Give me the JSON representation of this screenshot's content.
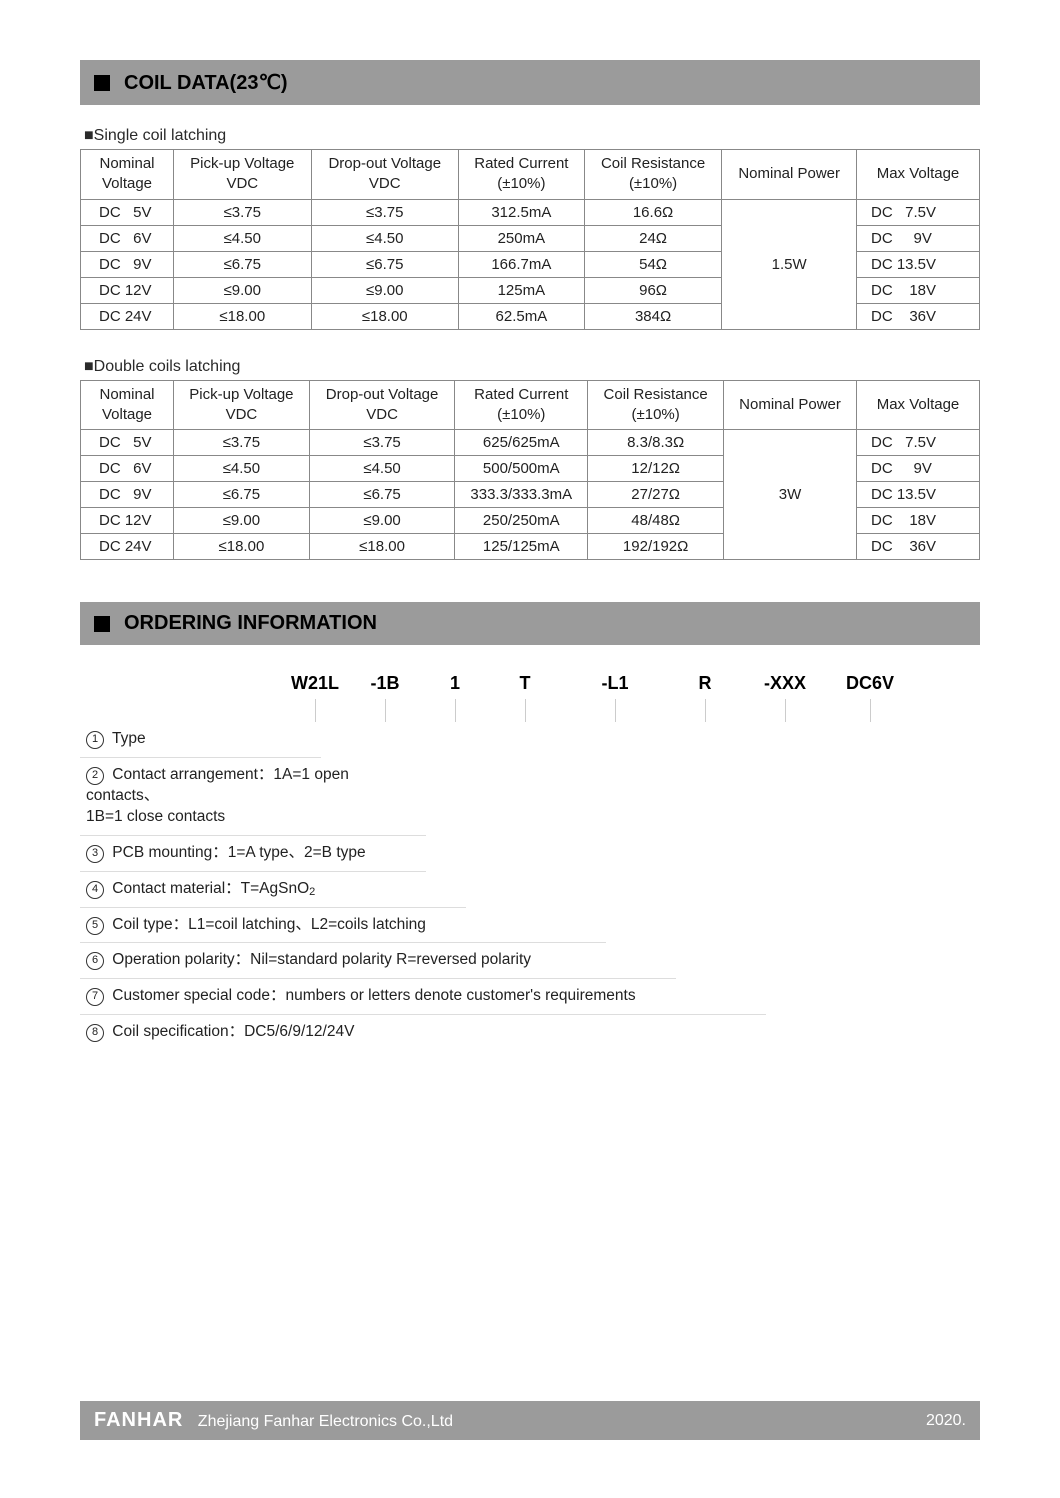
{
  "section1_title": "COIL DATA(23℃)",
  "table1_caption": "■Single coil latching",
  "table2_caption": "■Double coils latching",
  "headers": {
    "nominal_voltage": "Nominal\nVoltage",
    "pickup": "Pick-up Voltage\nVDC",
    "dropout": "Drop-out Voltage\nVDC",
    "rated_current": "Rated Current\n(±10%)",
    "coil_resistance": "Coil Resistance\n(±10%)",
    "nominal_power": "Nominal   Power",
    "max_voltage": "Max Voltage"
  },
  "table1": {
    "power": "1.5W",
    "rows": [
      {
        "nv": "DC   5V",
        "pu": "≤3.75",
        "do": "≤3.75",
        "rc": "312.5mA",
        "cr": "16.6Ω",
        "mv": "DC   7.5V"
      },
      {
        "nv": "DC   6V",
        "pu": "≤4.50",
        "do": "≤4.50",
        "rc": "250mA",
        "cr": "24Ω",
        "mv": "DC     9V"
      },
      {
        "nv": "DC   9V",
        "pu": "≤6.75",
        "do": "≤6.75",
        "rc": "166.7mA",
        "cr": "54Ω",
        "mv": "DC 13.5V"
      },
      {
        "nv": "DC 12V",
        "pu": "≤9.00",
        "do": "≤9.00",
        "rc": "125mA",
        "cr": "96Ω",
        "mv": "DC    18V"
      },
      {
        "nv": "DC 24V",
        "pu": "≤18.00",
        "do": "≤18.00",
        "rc": "62.5mA",
        "cr": "384Ω",
        "mv": "DC    36V"
      }
    ]
  },
  "table2": {
    "power": "3W",
    "rows": [
      {
        "nv": "DC   5V",
        "pu": "≤3.75",
        "do": "≤3.75",
        "rc": "625/625mA",
        "cr": "8.3/8.3Ω",
        "mv": "DC   7.5V"
      },
      {
        "nv": "DC   6V",
        "pu": "≤4.50",
        "do": "≤4.50",
        "rc": "500/500mA",
        "cr": "12/12Ω",
        "mv": "DC     9V"
      },
      {
        "nv": "DC   9V",
        "pu": "≤6.75",
        "do": "≤6.75",
        "rc": "333.3/333.3mA",
        "cr": "27/27Ω",
        "mv": "DC 13.5V"
      },
      {
        "nv": "DC 12V",
        "pu": "≤9.00",
        "do": "≤9.00",
        "rc": "250/250mA",
        "cr": "48/48Ω",
        "mv": "DC    18V"
      },
      {
        "nv": "DC 24V",
        "pu": "≤18.00",
        "do": "≤18.00",
        "rc": "125/125mA",
        "cr": "192/192Ω",
        "mv": "DC    36V"
      }
    ]
  },
  "section2_title": "ORDERING INFORMATION",
  "order_codes": [
    "W21L",
    "-1B",
    "1",
    "T",
    "-L1",
    "R",
    "-XXX",
    "DC6V"
  ],
  "order_code_widths": [
    70,
    70,
    70,
    70,
    110,
    70,
    90,
    80
  ],
  "order_labels": [
    "Type",
    "Contact arrangement：1A=1 open contacts、\n                                       1B=1 close contacts",
    "PCB mounting：1=A type、2=B type",
    "Contact material：T=AgSnO₂",
    "Coil type：L1=coil latching、L2=coils latching",
    "Operation polarity：Nil=standard polarity    R=reversed polarity",
    "Customer special code：numbers or letters denote customer's requirements",
    "Coil specification：DC5/6/9/12/24V"
  ],
  "order_label_widths": [
    235,
    340,
    340,
    380,
    520,
    590,
    680,
    900
  ],
  "footer": {
    "brand": "FANHAR",
    "company": "Zhejiang Fanhar Electronics Co.,Ltd",
    "year": "2020."
  },
  "colors": {
    "header_bg": "#9b9b9b",
    "border": "#888888"
  }
}
